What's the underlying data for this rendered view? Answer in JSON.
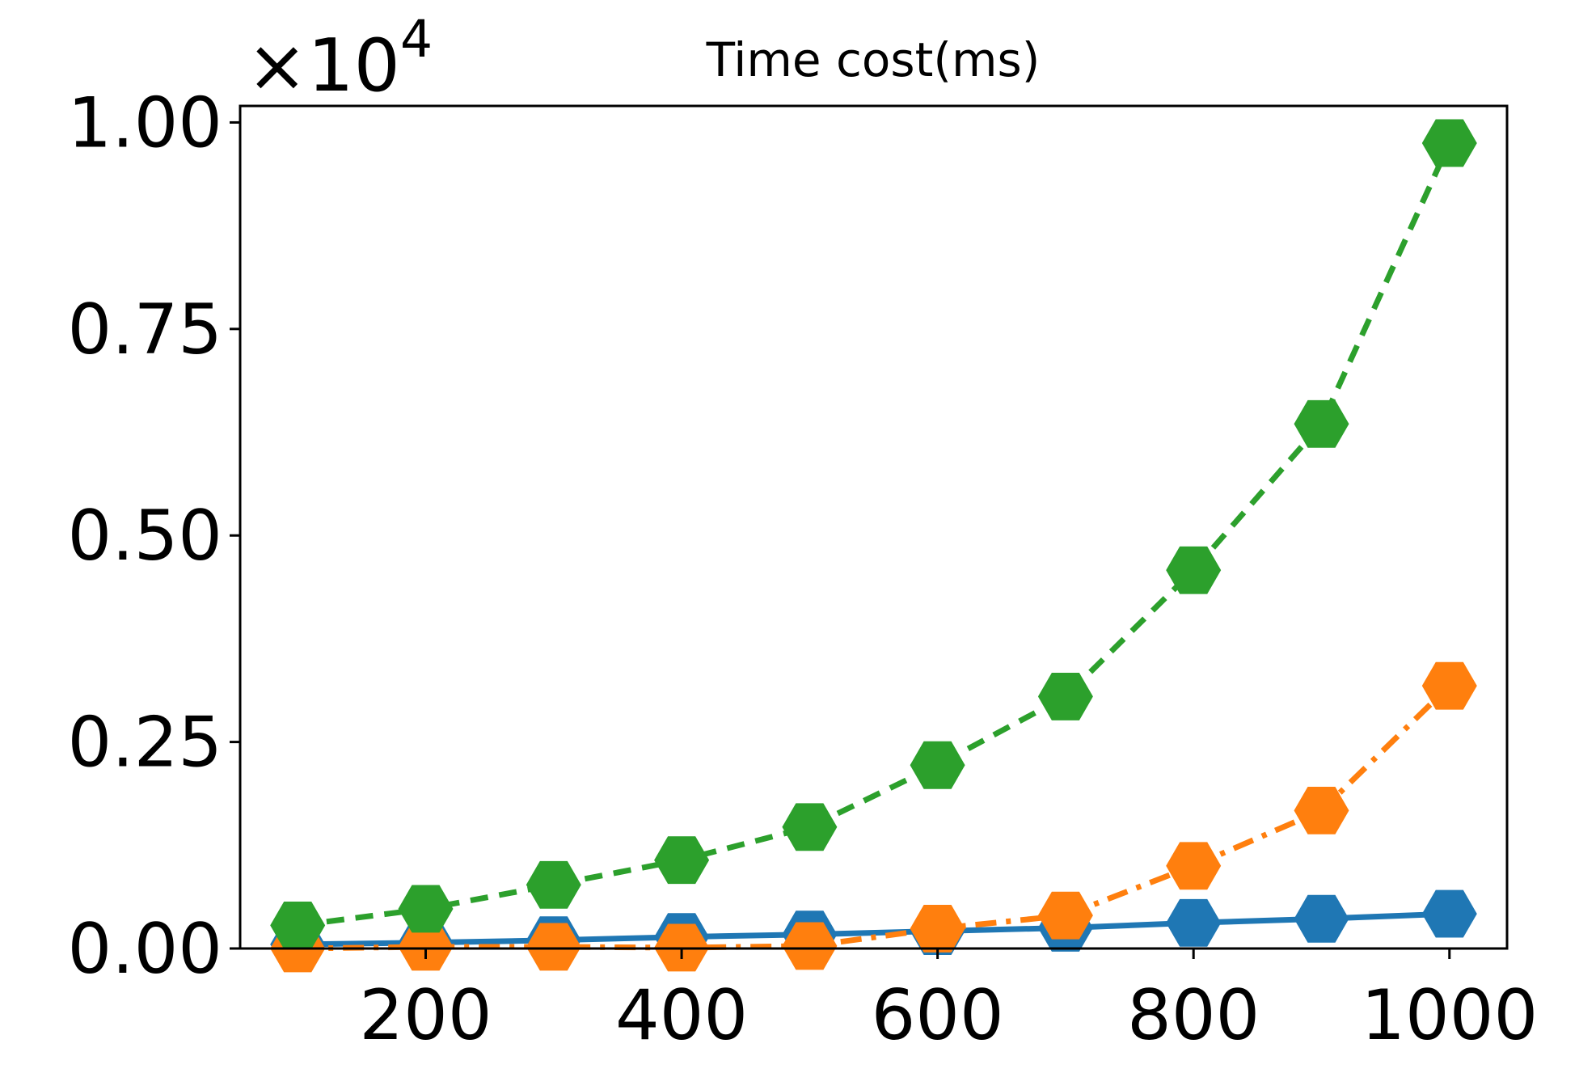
{
  "chart_data": {
    "type": "line",
    "title": "Time cost(ms)",
    "xlabel": "",
    "ylabel": "",
    "y_offset_text": "×10⁴",
    "y_offset_base": "×10",
    "y_offset_exp": "4",
    "xlim": [
      55,
      1045
    ],
    "ylim": [
      0,
      1.02
    ],
    "x_ticks": [
      200,
      400,
      600,
      800,
      1000
    ],
    "x_tick_labels": [
      "200",
      "400",
      "600",
      "800",
      "1000"
    ],
    "y_ticks": [
      0,
      0.25,
      0.5,
      0.75,
      1.0
    ],
    "y_tick_labels": [
      "0.00",
      "0.25",
      "0.50",
      "0.75",
      "1.00"
    ],
    "grid": false,
    "x": [
      100,
      200,
      300,
      400,
      500,
      600,
      700,
      800,
      900,
      1000
    ],
    "series": [
      {
        "color": "#1f77b4",
        "linestyle": "solid",
        "marker": "hexagon",
        "values": [
          0.005,
          0.007,
          0.01,
          0.014,
          0.017,
          0.021,
          0.025,
          0.031,
          0.036,
          0.042
        ]
      },
      {
        "color": "#ff7f0e",
        "linestyle": "dashdot",
        "marker": "hexagon",
        "values": [
          0.0,
          0.002,
          0.002,
          0.001,
          0.003,
          0.024,
          0.04,
          0.1,
          0.167,
          0.318
        ]
      },
      {
        "color": "#2ca02c",
        "linestyle": "dashed",
        "marker": "hexagon",
        "values": [
          0.028,
          0.048,
          0.077,
          0.107,
          0.147,
          0.222,
          0.305,
          0.458,
          0.635,
          0.975
        ]
      }
    ]
  }
}
